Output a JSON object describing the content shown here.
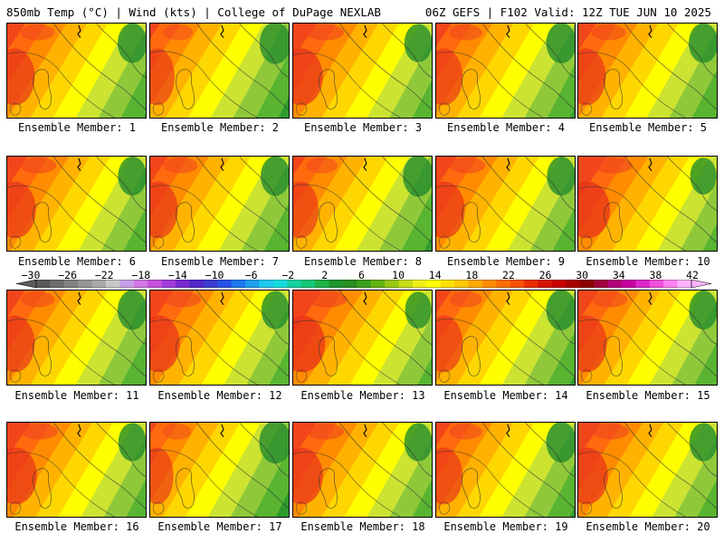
{
  "header": {
    "left": "850mb Temp (°C) | Wind (kts) | College of DuPage NEXLAB",
    "right": "06Z GEFS | F102 Valid: 12Z TUE JUN 10 2025"
  },
  "members": [
    {
      "label": "Ensemble Member: 1",
      "warmth": 0.45
    },
    {
      "label": "Ensemble Member: 2",
      "warmth": 0.3
    },
    {
      "label": "Ensemble Member: 3",
      "warmth": 0.55
    },
    {
      "label": "Ensemble Member: 4",
      "warmth": 0.4
    },
    {
      "label": "Ensemble Member: 5",
      "warmth": 0.45
    },
    {
      "label": "Ensemble Member: 6",
      "warmth": 0.5
    },
    {
      "label": "Ensemble Member: 7",
      "warmth": 0.45
    },
    {
      "label": "Ensemble Member: 8",
      "warmth": 0.35
    },
    {
      "label": "Ensemble Member: 9",
      "warmth": 0.5
    },
    {
      "label": "Ensemble Member: 10",
      "warmth": 0.65
    },
    {
      "label": "Ensemble Member: 11",
      "warmth": 0.45
    },
    {
      "label": "Ensemble Member: 12",
      "warmth": 0.55
    },
    {
      "label": "Ensemble Member: 13",
      "warmth": 0.65
    },
    {
      "label": "Ensemble Member: 14",
      "warmth": 0.4
    },
    {
      "label": "Ensemble Member: 15",
      "warmth": 0.5
    },
    {
      "label": "Ensemble Member: 16",
      "warmth": 0.55
    },
    {
      "label": "Ensemble Member: 17",
      "warmth": 0.25
    },
    {
      "label": "Ensemble Member: 18",
      "warmth": 0.55
    },
    {
      "label": "Ensemble Member: 19",
      "warmth": 0.4
    },
    {
      "label": "Ensemble Member: 20",
      "warmth": 0.55
    }
  ],
  "colorbar": {
    "labels": [
      "−30",
      "−26",
      "−22",
      "−18",
      "−14",
      "−10",
      "−6",
      "−2",
      "2",
      "6",
      "10",
      "14",
      "18",
      "22",
      "26",
      "30",
      "34",
      "38",
      "42"
    ],
    "colors": [
      "#5a5a5a",
      "#6e6e6e",
      "#828282",
      "#969696",
      "#aaaaaa",
      "#c8c8c8",
      "#c8a0e6",
      "#d278e6",
      "#c850dc",
      "#a03cdc",
      "#7828d2",
      "#5028c8",
      "#3c3cd2",
      "#2850e6",
      "#1e78f0",
      "#1ea0f0",
      "#1ec8f0",
      "#14dcdc",
      "#14d2a0",
      "#14c878",
      "#1eb446",
      "#1e962d",
      "#288c1e",
      "#3ca01e",
      "#64b414",
      "#96c814",
      "#c8dc14",
      "#f0f014",
      "#ffff00",
      "#ffe100",
      "#ffc800",
      "#ffaa00",
      "#ff8c00",
      "#ff6e00",
      "#fa5000",
      "#eb2d00",
      "#d71400",
      "#c80000",
      "#aa0000",
      "#8c0000",
      "#a0003c",
      "#b40078",
      "#c800a0",
      "#dc28c8",
      "#f050dc",
      "#ff82f0",
      "#ffb4ff"
    ],
    "field_colors": [
      "#2e9a2e",
      "#58b431",
      "#8fc93a",
      "#cce332",
      "#ffff00",
      "#ffd700",
      "#ffb300",
      "#ff8c00",
      "#ff6a0e",
      "#f2461a"
    ]
  }
}
